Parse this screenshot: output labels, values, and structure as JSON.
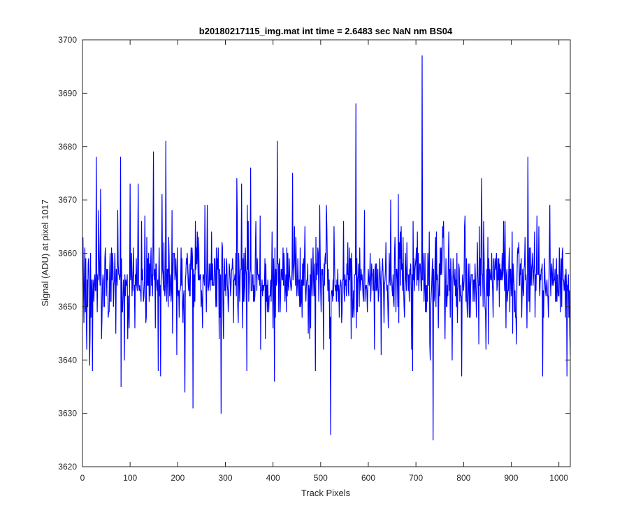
{
  "chart_data": {
    "type": "line",
    "title": "b20180217115_img.mat int time = 2.6483 sec  NaN nm BS04",
    "xlabel": "Track Pixels",
    "ylabel": "Signal (ADU) at pixel 1017",
    "xlim": [
      0,
      1024
    ],
    "ylim": [
      3620,
      3700
    ],
    "xticks": [
      0,
      100,
      200,
      300,
      400,
      500,
      600,
      700,
      800,
      900,
      1000
    ],
    "yticks": [
      3620,
      3630,
      3640,
      3650,
      3660,
      3670,
      3680,
      3690,
      3700
    ],
    "grid": false,
    "legend": "none",
    "series": [
      {
        "color": "#0000ff",
        "n_points": 1024,
        "mean": 3655,
        "noise_note": "pseudo-random approximation of noisy trace; notable extremes listed below",
        "extremes": [
          {
            "x": 5,
            "y": 3649
          },
          {
            "x": 8,
            "y": 3642
          },
          {
            "x": 14,
            "y": 3639
          },
          {
            "x": 20,
            "y": 3638
          },
          {
            "x": 28,
            "y": 3678
          },
          {
            "x": 37,
            "y": 3672
          },
          {
            "x": 39,
            "y": 3644
          },
          {
            "x": 79,
            "y": 3678
          },
          {
            "x": 80,
            "y": 3635
          },
          {
            "x": 87,
            "y": 3640
          },
          {
            "x": 116,
            "y": 3673
          },
          {
            "x": 148,
            "y": 3679
          },
          {
            "x": 158,
            "y": 3638
          },
          {
            "x": 163,
            "y": 3637
          },
          {
            "x": 174,
            "y": 3681
          },
          {
            "x": 214,
            "y": 3634
          },
          {
            "x": 231,
            "y": 3631
          },
          {
            "x": 261,
            "y": 3669
          },
          {
            "x": 290,
            "y": 3630
          },
          {
            "x": 323,
            "y": 3674
          },
          {
            "x": 352,
            "y": 3676
          },
          {
            "x": 373,
            "y": 3642
          },
          {
            "x": 402,
            "y": 3636
          },
          {
            "x": 408,
            "y": 3681
          },
          {
            "x": 440,
            "y": 3675
          },
          {
            "x": 488,
            "y": 3638
          },
          {
            "x": 520,
            "y": 3626
          },
          {
            "x": 573,
            "y": 3688
          },
          {
            "x": 612,
            "y": 3642
          },
          {
            "x": 690,
            "y": 3642
          },
          {
            "x": 712,
            "y": 3697
          },
          {
            "x": 728,
            "y": 3643
          },
          {
            "x": 735,
            "y": 3625
          },
          {
            "x": 775,
            "y": 3640
          },
          {
            "x": 795,
            "y": 3637
          },
          {
            "x": 934,
            "y": 3678
          },
          {
            "x": 965,
            "y": 3637
          },
          {
            "x": 1016,
            "y": 3637
          },
          {
            "x": 1022,
            "y": 3645
          }
        ]
      }
    ]
  }
}
